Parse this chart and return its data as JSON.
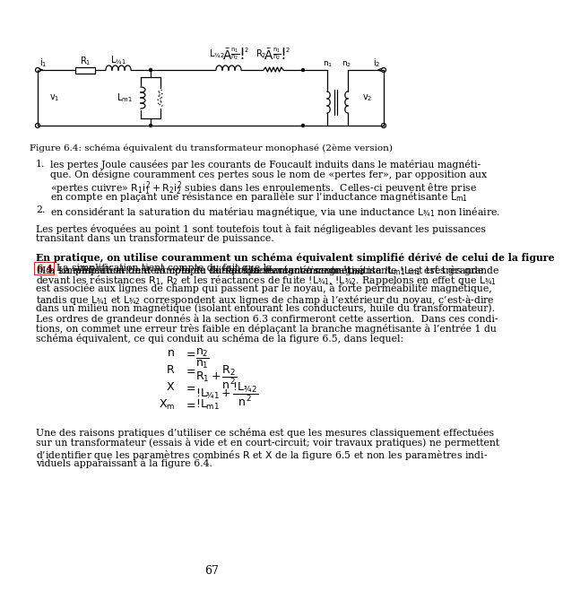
{
  "bg": "#ffffff",
  "fig_caption": "Figure 6.4: schéma équivalent du transformateur monophasé (2ème version)",
  "page_number": "67",
  "item1_line1": "les pertes Joule causées par les courants de Foucault induits dans le matériau magnéti-",
  "item1_line2": "que. On désigne couramment ces pertes sous le nom de «pertes fer», par opposition aux",
  "item1_line3": "«pertes cuivre» $R_1i_1^2 + R_2i_2^2$ subies dans les enroulements.  Celles-ci peuvent être prise",
  "item1_line4": "en compte en plaçant une résistance en parallèle sur l’inductance magnétisante $L_{m1}$",
  "item2": "en considérant la saturation du matériau magnétique, via une inductance $L_{\\sigma1}$ non linéaire.",
  "para1_line1": "Les pertes évoquées au point 1 sont toutefois tout à fait négligeables devant les puissances",
  "para1_line2": "transitant dans un transformateur de puissance.",
  "para2_line1": "En pratique, on utilise couramment un schéma équivalent simplifié dérivé de celui de la figure",
  "para2_line2": "6.4. La simplification tient compte du fait que la réactance magnétisante $\\omega L_{m1}$ est très grande",
  "para2_line3": "devant les résistances $R_1$, $R_2$ et les réactances de fuite $\\omega L_{\\sigma1}$, $\\omega L_{\\sigma2}$. Rappelons en effet que $L_{\\sigma1}$",
  "para2_line4": "est associée aux lignes de champ qui passent par le noyau, à forte perméabilité magnétique,",
  "para2_line5": "tandis que $L_{\\sigma1}$ et $L_{\\sigma2}$ correspondent aux lignes de champ à l’extérieur du noyau, c’est-à-dire",
  "para2_line6": "dans un milieu non magnétique (isolant entourant les conducteurs, huile du transformateur).",
  "para2_line7": "Les ordres de grandeur donnés à la section 6.3 confirmeront cette assertion.  Dans ces condi-",
  "para2_line8": "tions, on commet une erreur très faible en déplaçant la branche magnétisante à l’entrée 1 du",
  "para2_line9": "schéma équivalent, ce qui conduit au schéma de la figure 6.5, dans lequel:",
  "close_line1": "Une des raisons pratiques d’utiliser ce schéma est que les mesures classiquement effectuées",
  "close_line2": "sur un transformateur (essais à vide et en court-circuit; voir travaux pratiques) ne permettent",
  "close_line3": "d’identifier que les paramètres combinés $R$ et $X$ de la figure 6.5 et non les paramètres indi-",
  "close_line4": "viduels apparaissant à la figure 6.4."
}
